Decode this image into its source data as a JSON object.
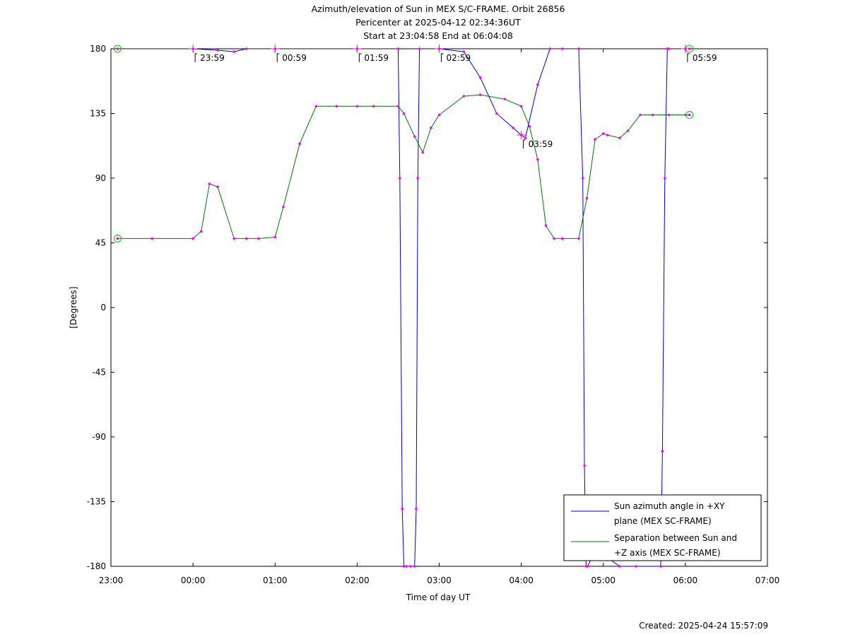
{
  "chart_data": {
    "type": "line",
    "title_lines": [
      "Azimuth/elevation of Sun in MEX S/C-FRAME.  Orbit 26856",
      "Pericenter at 2025-04-12 02:34:36UT",
      "Start at 23:04:58 End at 06:04:08"
    ],
    "xlabel": "Time of day UT",
    "ylabel": "[Degrees]",
    "xlim": [
      0,
      8
    ],
    "ylim": [
      -180,
      180
    ],
    "x_ticks": [
      {
        "v": 0,
        "label": "23:00"
      },
      {
        "v": 1,
        "label": "00:00"
      },
      {
        "v": 2,
        "label": "01:00"
      },
      {
        "v": 3,
        "label": "02:00"
      },
      {
        "v": 4,
        "label": "03:00"
      },
      {
        "v": 5,
        "label": "04:00"
      },
      {
        "v": 6,
        "label": "05:00"
      },
      {
        "v": 7,
        "label": "06:00"
      },
      {
        "v": 8,
        "label": "07:00"
      }
    ],
    "y_ticks": [
      {
        "v": 180,
        "label": "180"
      },
      {
        "v": 135,
        "label": "135"
      },
      {
        "v": 90,
        "label": "90"
      },
      {
        "v": 45,
        "label": "45"
      },
      {
        "v": 0,
        "label": "0"
      },
      {
        "v": -45,
        "label": "-45"
      },
      {
        "v": -90,
        "label": "-90"
      },
      {
        "v": -135,
        "label": "-135"
      },
      {
        "v": -180,
        "label": "-180"
      }
    ],
    "hour_annotations": [
      {
        "label": "23:59",
        "x": 1.0,
        "y": 180
      },
      {
        "label": "00:59",
        "x": 2.0,
        "y": 180
      },
      {
        "label": "01:59",
        "x": 3.0,
        "y": 180
      },
      {
        "label": "02:59",
        "x": 4.0,
        "y": 180
      },
      {
        "label": "03:59",
        "x": 5.0,
        "y": 120
      },
      {
        "label": "05:59",
        "x": 7.0,
        "y": 180
      }
    ],
    "legend_position": "bottom-right",
    "series": [
      {
        "name": "Sun azimuth angle in +XY plane (MEX SC-FRAME)",
        "legend_lines": [
          "Sun azimuth angle in +XY",
          "plane (MEX SC-FRAME)"
        ],
        "color": "#0000cc",
        "x": [
          0.08,
          1.0,
          1.3,
          1.5,
          1.65,
          2.0,
          3.0,
          3.5,
          3.52,
          3.55,
          3.57,
          3.6,
          3.65,
          3.7,
          3.72,
          3.74,
          3.76,
          4.0,
          4.3,
          4.5,
          4.7,
          4.9,
          5.0,
          5.05,
          5.2,
          5.35,
          5.5,
          5.7,
          5.75,
          5.77,
          5.79,
          5.81,
          5.85,
          6.0,
          6.2,
          6.4,
          6.7,
          6.72,
          6.75,
          6.78,
          6.8,
          7.0,
          7.05
        ],
        "y": [
          180,
          180,
          179,
          178,
          180,
          180,
          180,
          180,
          90,
          -140,
          -180,
          -180,
          -180,
          -180,
          -140,
          90,
          180,
          180,
          178,
          160,
          135,
          125,
          120,
          118,
          155,
          180,
          180,
          180,
          90,
          -110,
          -180,
          -180,
          -175,
          -172,
          -180,
          -180,
          -180,
          -100,
          90,
          180,
          180,
          180,
          180
        ]
      },
      {
        "name": "Separation between Sun and +Z axis (MEX SC-FRAME)",
        "legend_lines": [
          "Separation between Sun and",
          "+Z axis (MEX SC-FRAME)"
        ],
        "color": "#007700",
        "x": [
          0.08,
          0.5,
          1.0,
          1.1,
          1.2,
          1.3,
          1.5,
          1.65,
          1.8,
          2.0,
          2.1,
          2.3,
          2.5,
          2.75,
          3.0,
          3.2,
          3.5,
          3.57,
          3.7,
          3.8,
          3.9,
          4.0,
          4.3,
          4.5,
          4.8,
          5.0,
          5.1,
          5.2,
          5.3,
          5.4,
          5.5,
          5.7,
          5.8,
          5.9,
          6.0,
          6.05,
          6.2,
          6.3,
          6.45,
          6.6,
          6.8,
          7.0,
          7.05
        ],
        "y": [
          48,
          48,
          48,
          53,
          86,
          84,
          48,
          48,
          48,
          49,
          70,
          114,
          140,
          140,
          140,
          140,
          140,
          135,
          119,
          108,
          125,
          134,
          147,
          148,
          145,
          140,
          126,
          103,
          57,
          48,
          48,
          48,
          76,
          117,
          121,
          120,
          118,
          123,
          134,
          134,
          134,
          134,
          134
        ]
      }
    ],
    "footer": "Created: 2025-04-24 15:57:09"
  }
}
